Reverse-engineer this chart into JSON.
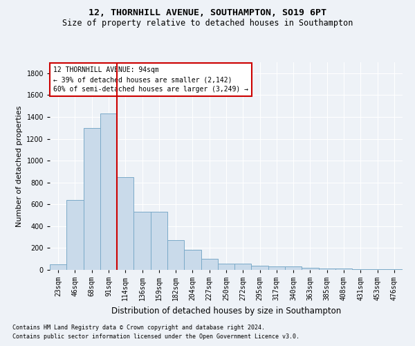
{
  "title1": "12, THORNHILL AVENUE, SOUTHAMPTON, SO19 6PT",
  "title2": "Size of property relative to detached houses in Southampton",
  "xlabel": "Distribution of detached houses by size in Southampton",
  "ylabel": "Number of detached properties",
  "bar_color": "#c9daea",
  "bar_edge_color": "#7aaac8",
  "categories": [
    "23sqm",
    "46sqm",
    "68sqm",
    "91sqm",
    "114sqm",
    "136sqm",
    "159sqm",
    "182sqm",
    "204sqm",
    "227sqm",
    "250sqm",
    "272sqm",
    "295sqm",
    "317sqm",
    "340sqm",
    "363sqm",
    "385sqm",
    "408sqm",
    "431sqm",
    "453sqm",
    "476sqm"
  ],
  "values": [
    50,
    640,
    1300,
    1430,
    850,
    530,
    530,
    275,
    185,
    100,
    60,
    60,
    35,
    30,
    30,
    20,
    10,
    10,
    5,
    5,
    5
  ],
  "ylim": [
    0,
    1900
  ],
  "yticks": [
    0,
    200,
    400,
    600,
    800,
    1000,
    1200,
    1400,
    1600,
    1800
  ],
  "vline_x": 3.5,
  "annotation_title": "12 THORNHILL AVENUE: 94sqm",
  "annotation_line1": "← 39% of detached houses are smaller (2,142)",
  "annotation_line2": "60% of semi-detached houses are larger (3,249) →",
  "footer1": "Contains HM Land Registry data © Crown copyright and database right 2024.",
  "footer2": "Contains public sector information licensed under the Open Government Licence v3.0.",
  "bg_color": "#eef2f7",
  "annotation_box_color": "#ffffff",
  "annotation_box_edge": "#cc0000",
  "vline_color": "#cc0000",
  "grid_color": "#ffffff",
  "title1_fontsize": 9.5,
  "title2_fontsize": 8.5,
  "ylabel_fontsize": 8,
  "xlabel_fontsize": 8.5,
  "tick_fontsize": 7,
  "footer_fontsize": 6,
  "annot_fontsize": 7
}
